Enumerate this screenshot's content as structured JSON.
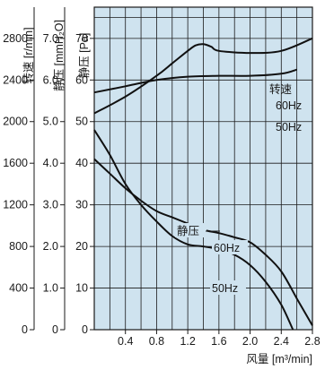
{
  "chart_data": {
    "type": "line",
    "xlabel": "风量 [m³/min]",
    "x_ticks": [
      "0.4",
      "0.8",
      "1.2",
      "1.6",
      "2.0",
      "2.4",
      "2.8"
    ],
    "xlim": [
      0,
      2.8
    ],
    "y_axes": [
      {
        "label": "转速 [r/min]",
        "ticks": [
          "0",
          "400",
          "800",
          "1200",
          "1600",
          "2000",
          "2400",
          "2800"
        ],
        "range": [
          0,
          2800
        ]
      },
      {
        "label": "静压 [mmH₂O]",
        "ticks": [
          "0",
          "1.0",
          "2.0",
          "3.0",
          "4.0",
          "5.0",
          "6.0",
          "7.0"
        ],
        "range": [
          0,
          7.0
        ]
      },
      {
        "label": "静压 [Pa]",
        "ticks": [
          "0",
          "10",
          "20",
          "30",
          "40",
          "50",
          "60",
          "70"
        ],
        "range": [
          0,
          70
        ]
      }
    ],
    "grid": true,
    "background_color": "#cfe3ef",
    "annotations": {
      "speed": "转速",
      "static_pressure": "静压",
      "f60": "60Hz",
      "f50": "50Hz"
    },
    "series": [
      {
        "name": "转速 60Hz",
        "group": "speed",
        "x": [
          0,
          0.4,
          0.8,
          1.0,
          1.2,
          1.3,
          1.4,
          1.5,
          1.6,
          2.0,
          2.4,
          2.8
        ],
        "y": [
          52,
          56,
          61,
          64,
          67,
          68.3,
          68.6,
          68,
          67,
          66.5,
          67,
          70
        ]
      },
      {
        "name": "转速 50Hz",
        "group": "speed",
        "x": [
          0,
          0.4,
          0.8,
          1.2,
          1.6,
          2.0,
          2.4,
          2.6
        ],
        "y": [
          57,
          58.5,
          60,
          60.8,
          61,
          61,
          61.5,
          62.5
        ]
      },
      {
        "name": "静压 60Hz",
        "group": "static_pressure",
        "x": [
          0,
          0.2,
          0.4,
          0.6,
          0.8,
          1.0,
          1.2,
          1.4,
          1.6,
          1.8,
          2.0,
          2.2,
          2.4,
          2.6,
          2.8
        ],
        "y": [
          41,
          37.5,
          34,
          31,
          28.5,
          27,
          25.5,
          24,
          23.2,
          22.2,
          21,
          18,
          14,
          7.5,
          1
        ]
      },
      {
        "name": "静压 50Hz",
        "group": "static_pressure",
        "x": [
          0,
          0.2,
          0.4,
          0.6,
          0.8,
          1.0,
          1.2,
          1.4,
          1.6,
          1.8,
          2.0,
          2.2,
          2.4,
          2.55
        ],
        "y": [
          48,
          42,
          35,
          30,
          26,
          22.5,
          20.5,
          20,
          19.3,
          18,
          15.5,
          11.5,
          6,
          0
        ]
      }
    ]
  }
}
